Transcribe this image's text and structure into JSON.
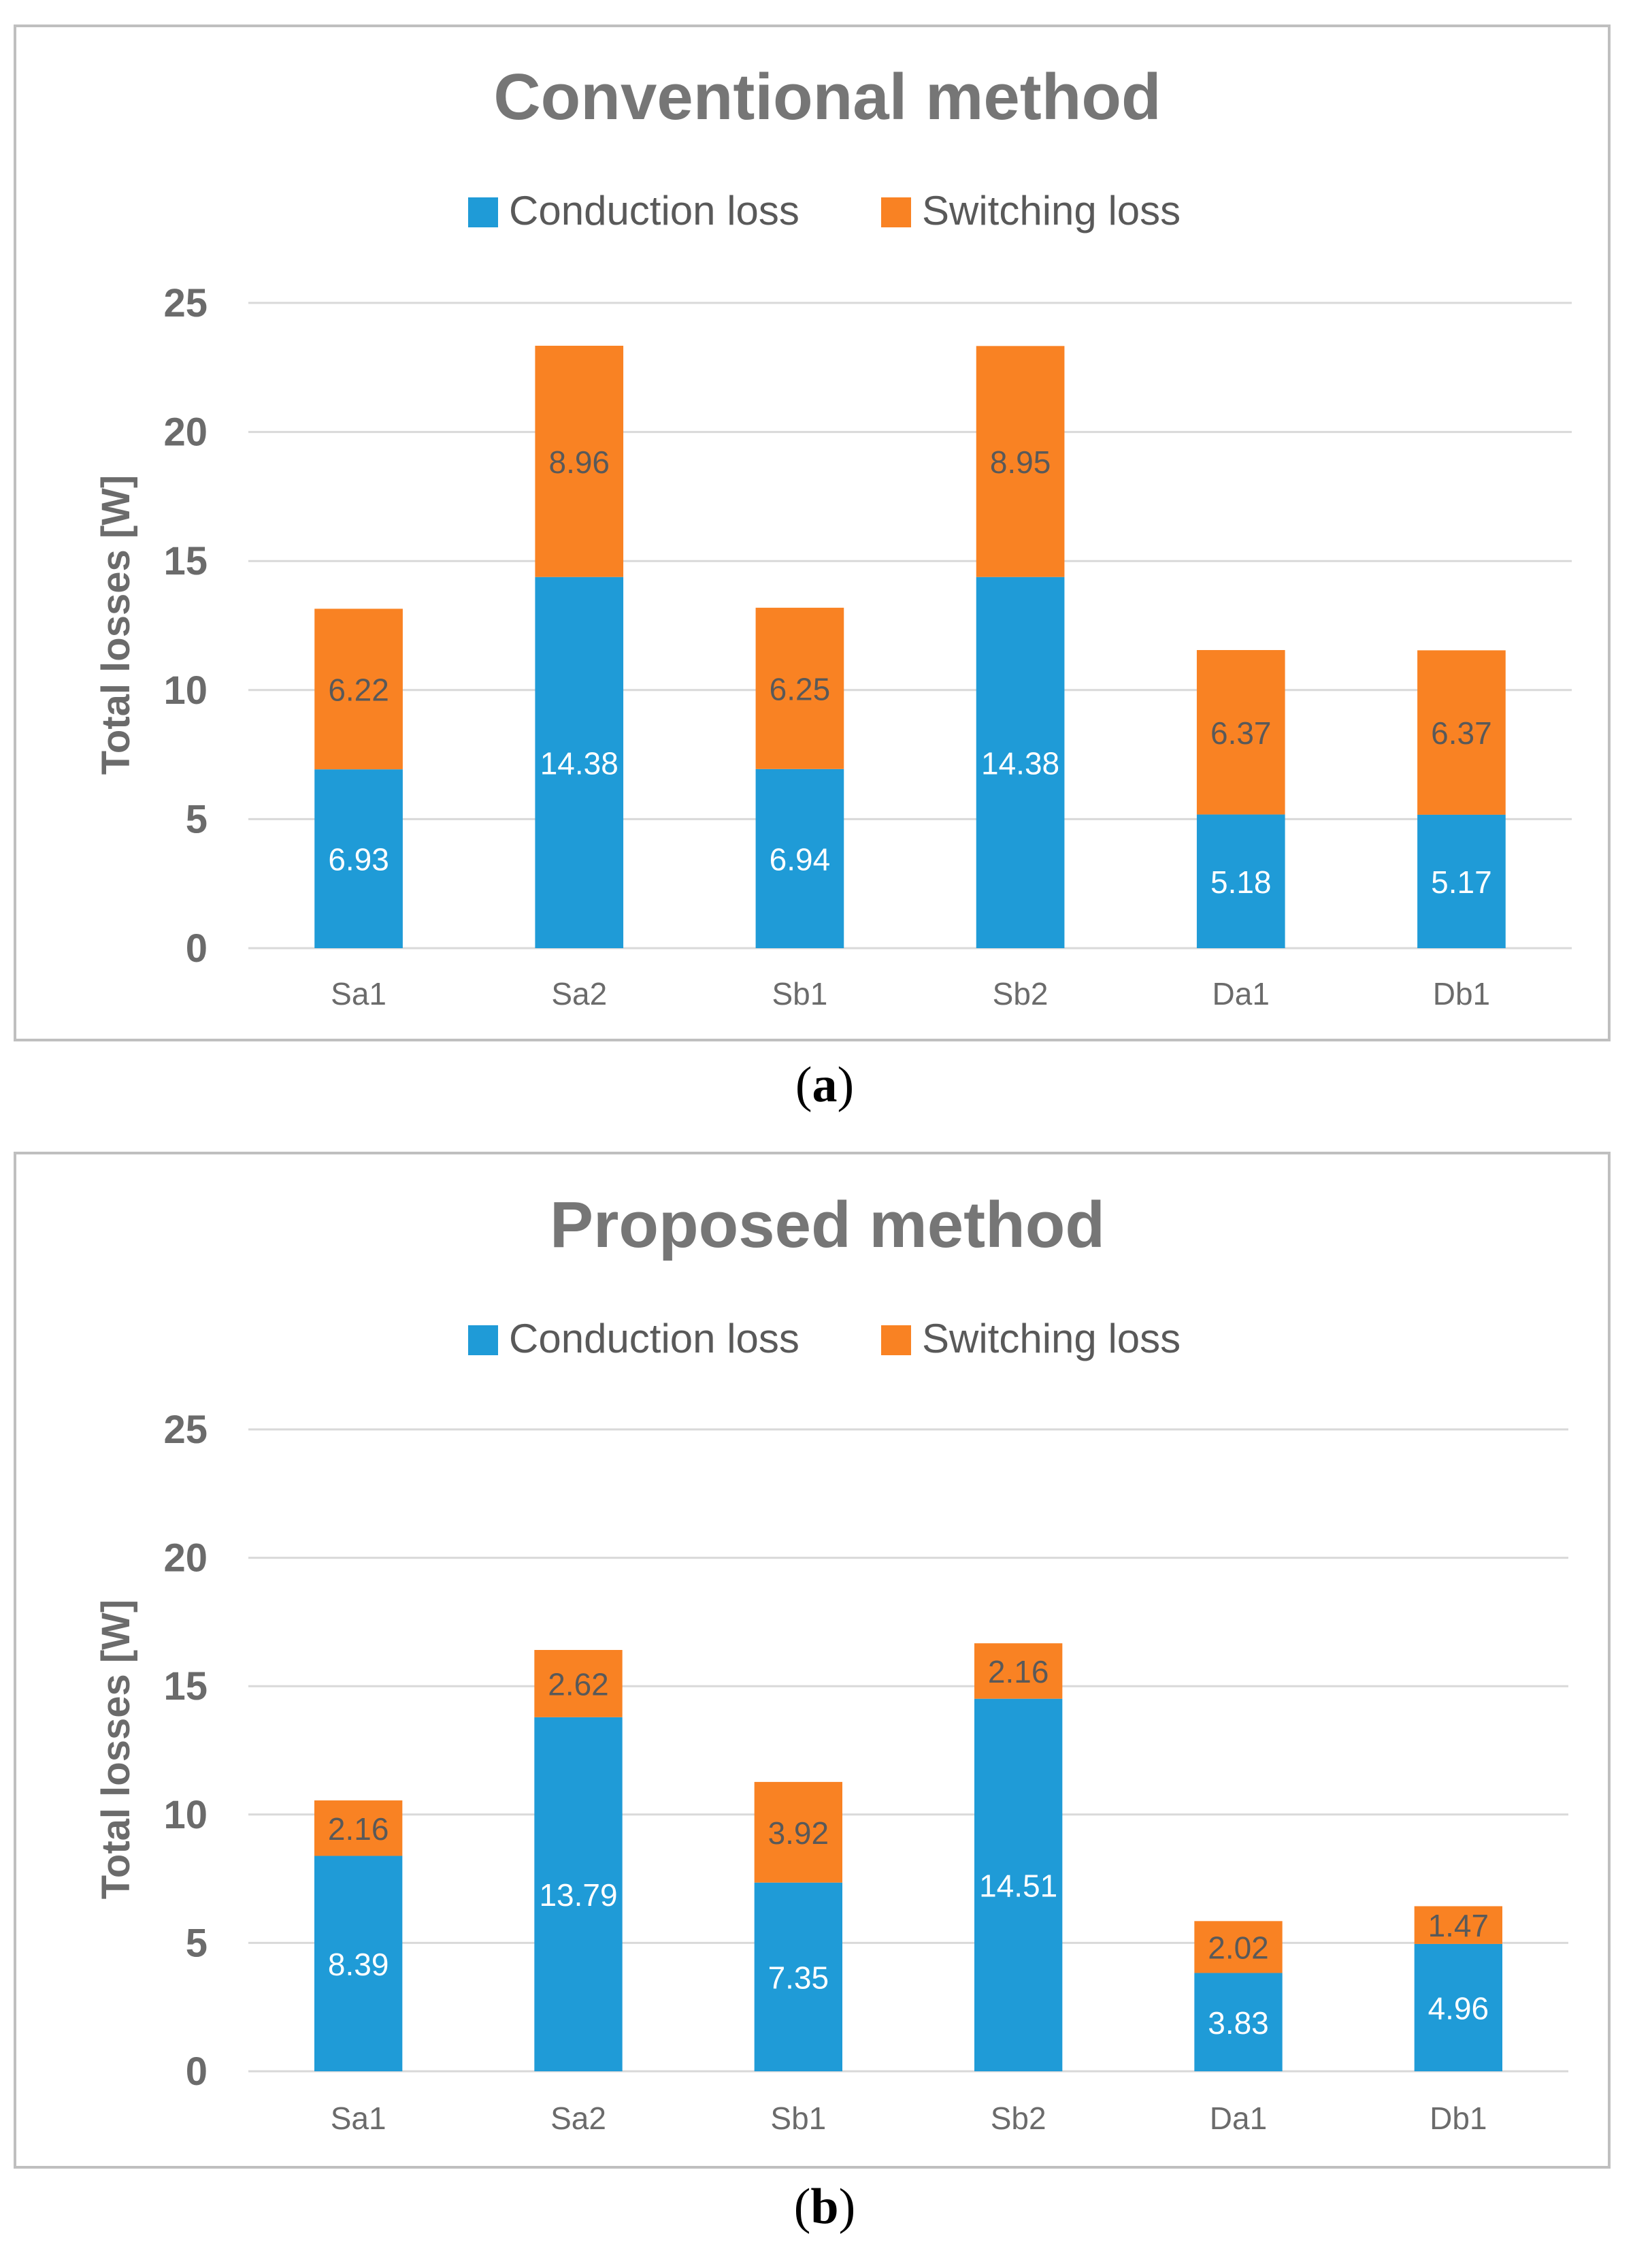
{
  "colors": {
    "conduction": "#1f9bd7",
    "switching": "#f98223",
    "grid": "#d9d9d9",
    "frame": "#bfbfbf"
  },
  "chart_data": [
    {
      "type": "bar",
      "stacked": true,
      "title": "Conventional method",
      "caption_letter": "a",
      "xlabel": "",
      "ylabel": "Total losses [W]",
      "ylim": [
        0,
        25
      ],
      "yticks": [
        0,
        5,
        10,
        15,
        20,
        25
      ],
      "grid": true,
      "legend_position": "top-center",
      "categories": [
        "Sa1",
        "Sa2",
        "Sb1",
        "Sb2",
        "Da1",
        "Db1"
      ],
      "series": [
        {
          "name": "Conduction loss",
          "values": [
            6.93,
            14.38,
            6.94,
            14.38,
            5.18,
            5.17
          ],
          "labels": [
            "6.93",
            "14.38",
            "6.94",
            "14.38",
            "5.18",
            "5.17"
          ]
        },
        {
          "name": "Switching loss",
          "values": [
            6.22,
            8.96,
            6.25,
            8.95,
            6.37,
            6.37
          ],
          "labels": [
            "6.22",
            "8.96",
            "6.25",
            "8.95",
            "6.37",
            "6.37"
          ]
        }
      ]
    },
    {
      "type": "bar",
      "stacked": true,
      "title": "Proposed method",
      "caption_letter": "b",
      "xlabel": "",
      "ylabel": "Total losses [W]",
      "ylim": [
        0,
        25
      ],
      "yticks": [
        0,
        5,
        10,
        15,
        20,
        25
      ],
      "grid": true,
      "legend_position": "top-center",
      "categories": [
        "Sa1",
        "Sa2",
        "Sb1",
        "Sb2",
        "Da1",
        "Db1"
      ],
      "series": [
        {
          "name": "Conduction loss",
          "values": [
            8.39,
            13.79,
            7.35,
            14.51,
            3.83,
            4.96
          ],
          "labels": [
            "8.39",
            "13.79",
            "7.35",
            "14.51",
            "3.83",
            "4.96"
          ]
        },
        {
          "name": "Switching loss",
          "values": [
            2.16,
            2.62,
            3.92,
            2.16,
            2.02,
            1.47
          ],
          "labels": [
            "2.16",
            "2.62",
            "3.92",
            "2.16",
            "2.02",
            "1.47"
          ]
        }
      ]
    }
  ]
}
